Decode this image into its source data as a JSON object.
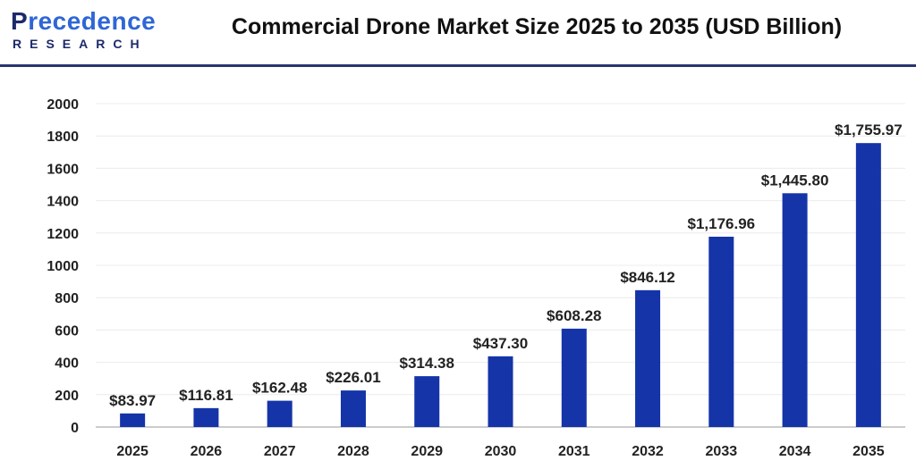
{
  "logo": {
    "line1": "Precedence",
    "line2": "RESEARCH"
  },
  "chart_data": {
    "type": "bar",
    "title": "Commercial Drone Market Size 2025 to 2035 (USD Billion)",
    "categories": [
      "2025",
      "2026",
      "2027",
      "2028",
      "2029",
      "2030",
      "2031",
      "2032",
      "2033",
      "2034",
      "2035"
    ],
    "values": [
      83.97,
      116.81,
      162.48,
      226.01,
      314.38,
      437.3,
      608.28,
      846.12,
      1176.96,
      1445.8,
      1755.97
    ],
    "data_labels": [
      "$83.97",
      "$116.81",
      "$162.48",
      "$226.01",
      "$314.38",
      "$437.30",
      "$608.28",
      "$846.12",
      "$1,176.96",
      "$1,445.80",
      "$1,755.97"
    ],
    "xlabel": "",
    "ylabel": "",
    "ylim": [
      0,
      2000
    ],
    "yticks": [
      0,
      200,
      400,
      600,
      800,
      1000,
      1200,
      1400,
      1600,
      1800,
      2000
    ],
    "grid": true,
    "bar_color": "#1434a8"
  }
}
